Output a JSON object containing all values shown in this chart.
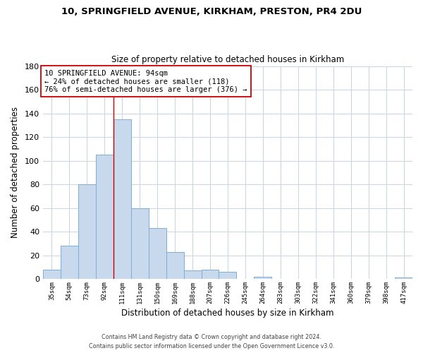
{
  "title": "10, SPRINGFIELD AVENUE, KIRKHAM, PRESTON, PR4 2DU",
  "subtitle": "Size of property relative to detached houses in Kirkham",
  "xlabel": "Distribution of detached houses by size in Kirkham",
  "ylabel": "Number of detached properties",
  "bar_labels": [
    "35sqm",
    "54sqm",
    "73sqm",
    "92sqm",
    "111sqm",
    "131sqm",
    "150sqm",
    "169sqm",
    "188sqm",
    "207sqm",
    "226sqm",
    "245sqm",
    "264sqm",
    "283sqm",
    "303sqm",
    "322sqm",
    "341sqm",
    "360sqm",
    "379sqm",
    "398sqm",
    "417sqm"
  ],
  "bar_values": [
    8,
    28,
    80,
    105,
    135,
    60,
    43,
    23,
    7,
    8,
    6,
    0,
    2,
    0,
    0,
    0,
    0,
    0,
    0,
    0,
    1
  ],
  "bar_color": "#c8d8ed",
  "bar_edge_color": "#7bafd4",
  "ylim": [
    0,
    180
  ],
  "yticks": [
    0,
    20,
    40,
    60,
    80,
    100,
    120,
    140,
    160,
    180
  ],
  "vline_x_idx": 3,
  "vline_color": "#cc0000",
  "annotation_text": "10 SPRINGFIELD AVENUE: 94sqm\n← 24% of detached houses are smaller (118)\n76% of semi-detached houses are larger (376) →",
  "annotation_box_edgecolor": "#cc0000",
  "footer_line1": "Contains HM Land Registry data © Crown copyright and database right 2024.",
  "footer_line2": "Contains public sector information licensed under the Open Government Licence v3.0.",
  "background_color": "#ffffff",
  "grid_color": "#c8d4e0"
}
